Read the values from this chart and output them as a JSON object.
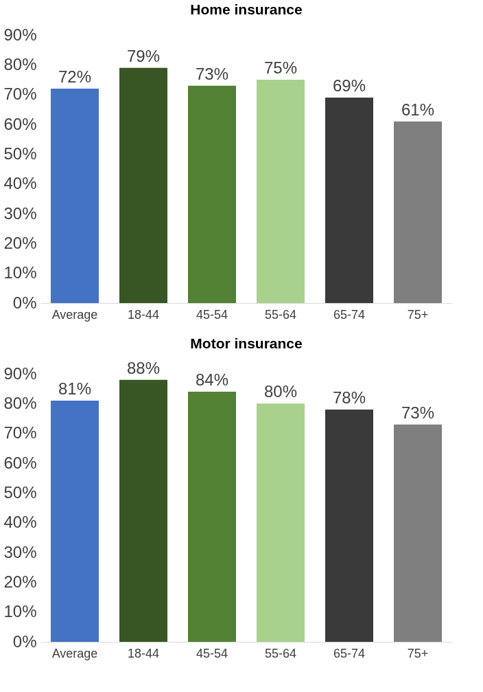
{
  "chart_data": [
    {
      "type": "bar",
      "title": "Home insurance",
      "categories": [
        "Average",
        "18-44",
        "45-54",
        "55-64",
        "65-74",
        "75+"
      ],
      "values": [
        72,
        79,
        73,
        75,
        69,
        61
      ],
      "colors": [
        "#4472c4",
        "#375623",
        "#548235",
        "#a9d18e",
        "#3a3a3a",
        "#7f7f7f"
      ],
      "value_labels": [
        "72%",
        "79%",
        "73%",
        "75%",
        "69%",
        "61%"
      ],
      "ylim": [
        0,
        90
      ],
      "yticks": [
        {
          "value": 0,
          "label": "0%"
        },
        {
          "value": 10,
          "label": "10%"
        },
        {
          "value": 20,
          "label": "20%"
        },
        {
          "value": 30,
          "label": "30%"
        },
        {
          "value": 40,
          "label": "40%"
        },
        {
          "value": 50,
          "label": "50%"
        },
        {
          "value": 60,
          "label": "60%"
        },
        {
          "value": 70,
          "label": "70%"
        },
        {
          "value": 80,
          "label": "80%"
        },
        {
          "value": 90,
          "label": "90%"
        }
      ]
    },
    {
      "type": "bar",
      "title": "Motor insurance",
      "categories": [
        "Average",
        "18-44",
        "45-54",
        "55-64",
        "65-74",
        "75+"
      ],
      "values": [
        81,
        88,
        84,
        80,
        78,
        73
      ],
      "colors": [
        "#4472c4",
        "#375623",
        "#548235",
        "#a9d18e",
        "#3a3a3a",
        "#7f7f7f"
      ],
      "value_labels": [
        "81%",
        "88%",
        "84%",
        "80%",
        "78%",
        "73%"
      ],
      "ylim": [
        0,
        90
      ],
      "yticks": [
        {
          "value": 0,
          "label": "0%"
        },
        {
          "value": 10,
          "label": "10%"
        },
        {
          "value": 20,
          "label": "20%"
        },
        {
          "value": 30,
          "label": "30%"
        },
        {
          "value": 40,
          "label": "40%"
        },
        {
          "value": 50,
          "label": "50%"
        },
        {
          "value": 60,
          "label": "60%"
        },
        {
          "value": 70,
          "label": "70%"
        },
        {
          "value": 80,
          "label": "80%"
        },
        {
          "value": 90,
          "label": "90%"
        }
      ]
    }
  ]
}
